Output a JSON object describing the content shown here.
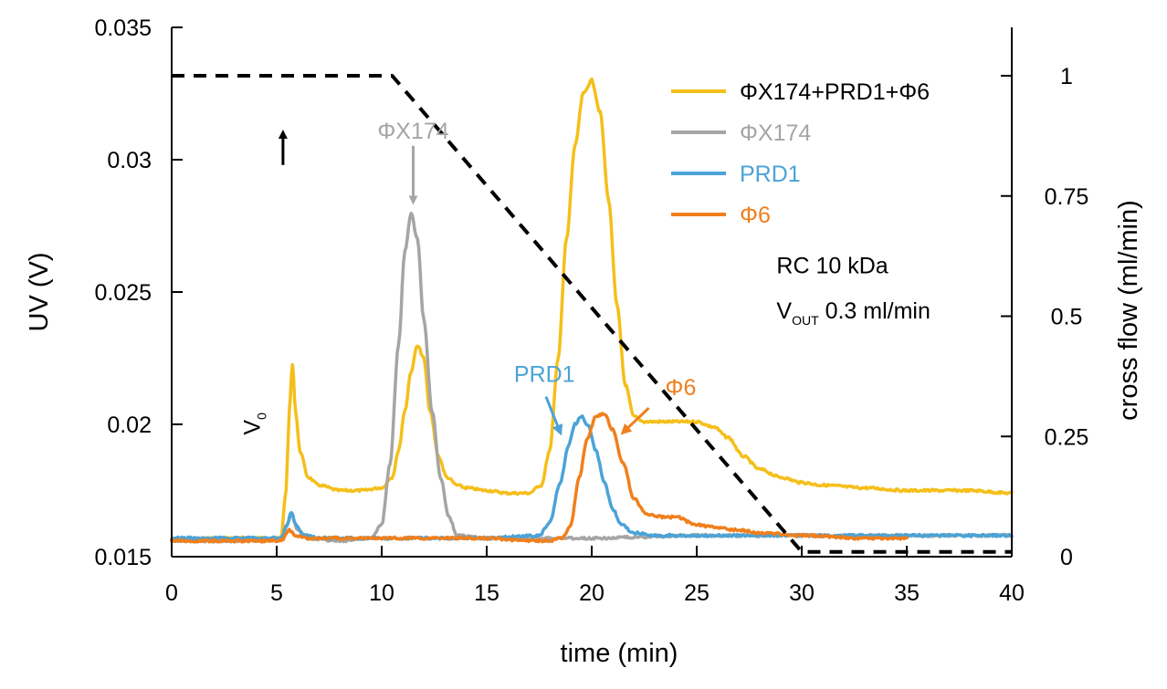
{
  "chart_data": {
    "type": "line",
    "title": "",
    "xlabel": "time (min)",
    "ylabel_left": "UV (V)",
    "ylabel_right": "cross flow (ml/min)",
    "xlim": [
      0,
      40
    ],
    "ylim_left": [
      0.015,
      0.035
    ],
    "ylim_right": [
      0,
      1.0
    ],
    "grid": false,
    "legend_position": "top-right",
    "x_ticks": [
      "0",
      "5",
      "10",
      "15",
      "20",
      "25",
      "30",
      "35",
      "40"
    ],
    "y_left_ticks": [
      "0.015",
      "0.02",
      "0.025",
      "0.03",
      "0.035"
    ],
    "y_right_ticks": [
      "0",
      "0.25",
      "0.5",
      "0.75",
      "1"
    ],
    "series": [
      {
        "name": "ΦX174+PRD1+Φ6",
        "color": "#F5BF1A",
        "axis": "left",
        "x": [
          0,
          2,
          4,
          5.2,
          5.45,
          5.6,
          5.75,
          5.9,
          6.1,
          6.5,
          7,
          8,
          9,
          10,
          10.5,
          10.8,
          11.1,
          11.4,
          11.7,
          12.0,
          12.3,
          12.7,
          13.1,
          13.6,
          14,
          15,
          16,
          17,
          17.6,
          18.0,
          18.4,
          18.8,
          19.2,
          19.6,
          20.0,
          20.4,
          20.8,
          21.2,
          21.6,
          22.0,
          22.5,
          23,
          24,
          25,
          25.8,
          26.5,
          27.2,
          28,
          29,
          30,
          31,
          33,
          35,
          38,
          40
        ],
        "y": [
          0.0156,
          0.0157,
          0.0157,
          0.0157,
          0.0175,
          0.0205,
          0.0223,
          0.0205,
          0.019,
          0.018,
          0.0177,
          0.0175,
          0.0175,
          0.0176,
          0.018,
          0.019,
          0.0205,
          0.022,
          0.023,
          0.0225,
          0.0205,
          0.0188,
          0.018,
          0.0177,
          0.0176,
          0.0175,
          0.0174,
          0.0174,
          0.0177,
          0.019,
          0.0225,
          0.027,
          0.0305,
          0.0325,
          0.033,
          0.0318,
          0.0285,
          0.0245,
          0.0215,
          0.0203,
          0.0201,
          0.0201,
          0.0201,
          0.0201,
          0.0199,
          0.0195,
          0.0188,
          0.0183,
          0.018,
          0.0178,
          0.0177,
          0.0176,
          0.0175,
          0.0175,
          0.0174
        ]
      },
      {
        "name": "ΦX174",
        "color": "#A5A5A5",
        "axis": "left",
        "x": [
          0,
          5.2,
          5.5,
          5.7,
          6.0,
          6.5,
          8,
          9.5,
          10.0,
          10.4,
          10.8,
          11.1,
          11.4,
          11.7,
          12.0,
          12.4,
          12.8,
          13.2,
          13.6,
          15,
          20,
          25,
          30,
          40
        ],
        "y": [
          0.0156,
          0.0156,
          0.0162,
          0.0166,
          0.016,
          0.0157,
          0.0156,
          0.0157,
          0.0162,
          0.0185,
          0.023,
          0.0265,
          0.028,
          0.027,
          0.024,
          0.0205,
          0.018,
          0.0165,
          0.0158,
          0.0157,
          0.0157,
          0.0158,
          0.0158,
          0.0158
        ]
      },
      {
        "name": "PRD1",
        "color": "#4BA3D7",
        "axis": "left",
        "x": [
          0,
          5.2,
          5.5,
          5.7,
          5.9,
          6.3,
          7,
          10,
          15,
          17.5,
          18.0,
          18.5,
          18.9,
          19.2,
          19.5,
          19.8,
          20.2,
          20.6,
          21.0,
          21.4,
          22.0,
          23,
          25,
          30,
          35,
          40
        ],
        "y": [
          0.0157,
          0.0157,
          0.0162,
          0.0167,
          0.0162,
          0.0158,
          0.0157,
          0.0157,
          0.0157,
          0.0158,
          0.0163,
          0.0178,
          0.0192,
          0.02,
          0.0203,
          0.02,
          0.019,
          0.0178,
          0.0168,
          0.0162,
          0.0159,
          0.0158,
          0.0158,
          0.0158,
          0.0158,
          0.0158
        ]
      },
      {
        "name": "Φ6",
        "color": "#F07F1C",
        "axis": "left",
        "x": [
          0,
          5.2,
          5.6,
          5.9,
          6.4,
          7,
          10,
          15,
          17,
          18.0,
          18.6,
          19.0,
          19.4,
          19.8,
          20.2,
          20.6,
          21.0,
          21.5,
          22.0,
          22.6,
          23.3,
          24,
          25,
          26,
          27,
          28,
          30,
          33,
          35
        ],
        "y": [
          0.0156,
          0.0156,
          0.016,
          0.0158,
          0.0157,
          0.0157,
          0.0157,
          0.0157,
          0.0156,
          0.0156,
          0.0157,
          0.0162,
          0.018,
          0.0195,
          0.0203,
          0.0204,
          0.0198,
          0.0185,
          0.0172,
          0.0166,
          0.0165,
          0.0165,
          0.0162,
          0.0161,
          0.016,
          0.0159,
          0.0158,
          0.0157,
          0.0157
        ]
      },
      {
        "name": "cross flow",
        "color": "#000000",
        "axis": "right",
        "style": "dashed",
        "x": [
          0,
          10.5,
          30,
          40
        ],
        "y": [
          1.0,
          1.0,
          0.01,
          0.01
        ]
      }
    ],
    "annotations": [
      {
        "text": "ΦX174",
        "color": "#A5A5A5",
        "x": 11.5,
        "y": 0.0308,
        "arrow_to": [
          11.5,
          0.0284
        ]
      },
      {
        "text": "PRD1",
        "color": "#4BA3D7",
        "x": 16.3,
        "y": 0.0216,
        "arrow_to": [
          18.5,
          0.0197
        ]
      },
      {
        "text": "Φ6",
        "color": "#F07F1C",
        "x": 23.5,
        "y": 0.0211,
        "arrow_to": [
          21.5,
          0.0197
        ]
      },
      {
        "text": "RC 10 kDa",
        "color": "#000000",
        "x": 28.8,
        "y": 0.0257
      },
      {
        "text": "V",
        "subscript": "OUT",
        "suffix": " 0.3 ml/min",
        "color": "#000000",
        "x": 28.8,
        "y": 0.024
      },
      {
        "text": "V",
        "subscript": "0",
        "color": "#000000",
        "x": 4.2,
        "y": 0.0196,
        "rotated": true
      },
      {
        "text": "",
        "color": "#000000",
        "x": 5.3,
        "y": 0.0298,
        "arrow_to": [
          5.3,
          0.031
        ],
        "arrow_only": true
      }
    ]
  }
}
